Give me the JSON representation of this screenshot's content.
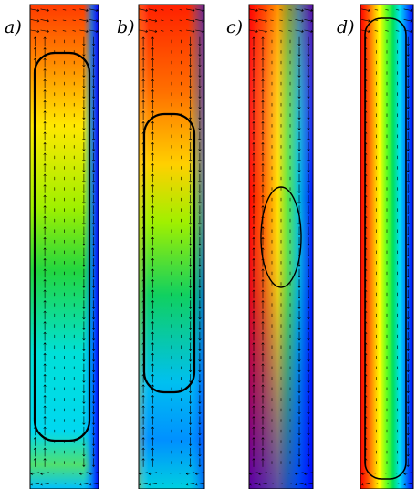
{
  "figure": {
    "panels": [
      {
        "label": "a)",
        "name": "panel-a"
      },
      {
        "label": "b)",
        "name": "panel-b"
      },
      {
        "label": "c)",
        "name": "panel-c"
      },
      {
        "label": "d)",
        "name": "panel-d"
      }
    ],
    "colormap": [
      "#0000ff",
      "#00a0ff",
      "#00ffff",
      "#00e080",
      "#00ff00",
      "#a0ff00",
      "#ffff00",
      "#ffa000",
      "#ff6000",
      "#ff0000"
    ]
  }
}
